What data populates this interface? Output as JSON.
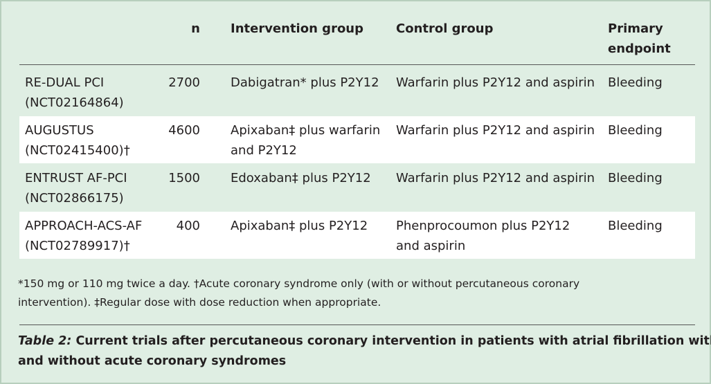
{
  "table": {
    "header": [
      [
        "n"
      ],
      [
        "Intervention group"
      ],
      [
        "Control group"
      ],
      [
        "Primary",
        "endpoint"
      ]
    ],
    "rows": [
      [
        [
          "RE-DUAL PCI",
          "(NCT02164864)"
        ],
        [
          "2700"
        ],
        [
          "Dabigatran* plus P2Y12"
        ],
        [
          "Warfarin plus P2Y12 and aspirin"
        ],
        [
          "Bleeding"
        ]
      ],
      [
        [
          "AUGUSTUS",
          "(NCT02415400)†"
        ],
        [
          "4600"
        ],
        [
          "Apixaban‡ plus warfarin",
          "and P2Y12"
        ],
        [
          "Warfarin plus P2Y12 and aspirin"
        ],
        [
          "Bleeding"
        ]
      ],
      [
        [
          "ENTRUST AF-PCI",
          "(NCT02866175)"
        ],
        [
          "1500"
        ],
        [
          "Edoxaban‡ plus P2Y12"
        ],
        [
          "Warfarin plus P2Y12 and aspirin"
        ],
        [
          "Bleeding"
        ]
      ],
      [
        [
          "APPROACH-ACS-AF",
          "(NCT02789917)†"
        ],
        [
          "400"
        ],
        [
          "Apixaban‡ plus P2Y12"
        ],
        [
          "Phenprocoumon plus P2Y12",
          "and aspirin"
        ],
        [
          "Bleeding"
        ]
      ]
    ]
  },
  "footnote": [
    "*150 mg or 110 mg twice a day. †Acute coronary syndrome only (with or without percutaneous coronary",
    "intervention). ‡Regular dose with dose reduction when appropriate."
  ],
  "caption": {
    "label": "Table 2:",
    "lines": [
      "Current trials after percutaneous coronary intervention in patients with atrial fibrillation with",
      "and without acute coronary syndromes"
    ]
  }
}
